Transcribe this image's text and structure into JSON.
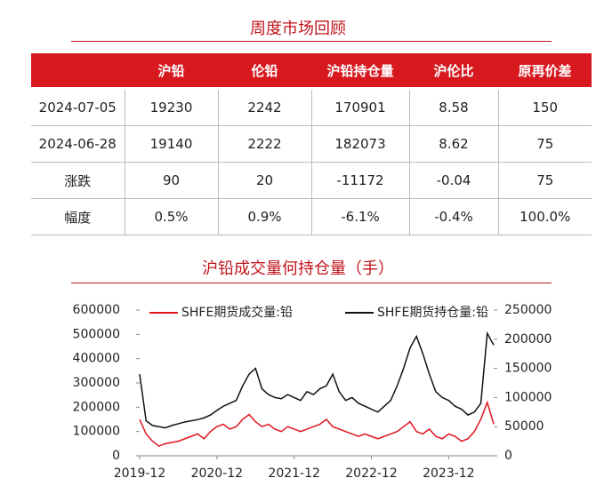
{
  "header": {
    "title": "周度市场回顾"
  },
  "table": {
    "columns": [
      "沪铅",
      "伦铅",
      "沪铅持仓量",
      "沪伦比",
      "原再价差"
    ],
    "rows": [
      [
        "2024-07-05",
        "19230",
        "2242",
        "170901",
        "8.58",
        "150"
      ],
      [
        "2024-06-28",
        "19140",
        "2222",
        "182073",
        "8.62",
        "75"
      ],
      [
        "涨跌",
        "90",
        "20",
        "-11172",
        "-0.04",
        "75"
      ],
      [
        "幅度",
        "0.5%",
        "0.9%",
        "-6.1%",
        "-0.4%",
        "100.0%"
      ]
    ]
  },
  "chart_data": {
    "type": "line",
    "title": "沪铅成交量何持仓量（手）",
    "x": [
      "2019-12",
      "2020-01",
      "2020-02",
      "2020-03",
      "2020-04",
      "2020-05",
      "2020-06",
      "2020-07",
      "2020-08",
      "2020-09",
      "2020-10",
      "2020-11",
      "2020-12",
      "2021-01",
      "2021-02",
      "2021-03",
      "2021-04",
      "2021-05",
      "2021-06",
      "2021-07",
      "2021-08",
      "2021-09",
      "2021-10",
      "2021-11",
      "2021-12",
      "2022-01",
      "2022-02",
      "2022-03",
      "2022-04",
      "2022-05",
      "2022-06",
      "2022-07",
      "2022-08",
      "2022-09",
      "2022-10",
      "2022-11",
      "2022-12",
      "2023-01",
      "2023-02",
      "2023-03",
      "2023-04",
      "2023-05",
      "2023-06",
      "2023-07",
      "2023-08",
      "2023-09",
      "2023-10",
      "2023-11",
      "2023-12",
      "2024-01",
      "2024-02",
      "2024-03",
      "2024-04",
      "2024-05",
      "2024-06",
      "2024-07"
    ],
    "xticks": [
      "2019-12",
      "2020-12",
      "2021-12",
      "2022-12",
      "2023-12"
    ],
    "series": [
      {
        "name": "SHFE期货成交量:铅",
        "color": "#e0141e",
        "axis": "y",
        "values": [
          150000,
          90000,
          60000,
          40000,
          50000,
          55000,
          60000,
          70000,
          80000,
          90000,
          70000,
          100000,
          120000,
          130000,
          110000,
          120000,
          150000,
          170000,
          140000,
          120000,
          130000,
          110000,
          100000,
          120000,
          110000,
          100000,
          110000,
          120000,
          130000,
          150000,
          120000,
          110000,
          100000,
          90000,
          80000,
          90000,
          80000,
          70000,
          80000,
          90000,
          100000,
          120000,
          140000,
          100000,
          90000,
          110000,
          80000,
          70000,
          90000,
          80000,
          60000,
          70000,
          100000,
          150000,
          220000,
          130000
        ]
      },
      {
        "name": "SHFE期货持仓量:铅",
        "color": "#111111",
        "axis": "y2",
        "values": [
          140000,
          60000,
          52000,
          50000,
          48000,
          52000,
          55000,
          58000,
          60000,
          62000,
          65000,
          70000,
          78000,
          85000,
          90000,
          95000,
          120000,
          140000,
          150000,
          115000,
          105000,
          100000,
          98000,
          105000,
          100000,
          95000,
          110000,
          105000,
          115000,
          120000,
          140000,
          110000,
          95000,
          100000,
          90000,
          85000,
          80000,
          75000,
          85000,
          95000,
          120000,
          150000,
          185000,
          205000,
          175000,
          140000,
          110000,
          100000,
          95000,
          85000,
          80000,
          70000,
          75000,
          90000,
          210000,
          190000
        ]
      }
    ],
    "ylim": [
      0,
      600000
    ],
    "yticks": [
      0,
      100000,
      200000,
      300000,
      400000,
      500000,
      600000
    ],
    "y2lim": [
      0,
      250000
    ],
    "y2ticks": [
      0,
      50000,
      100000,
      150000,
      200000,
      250000
    ]
  }
}
